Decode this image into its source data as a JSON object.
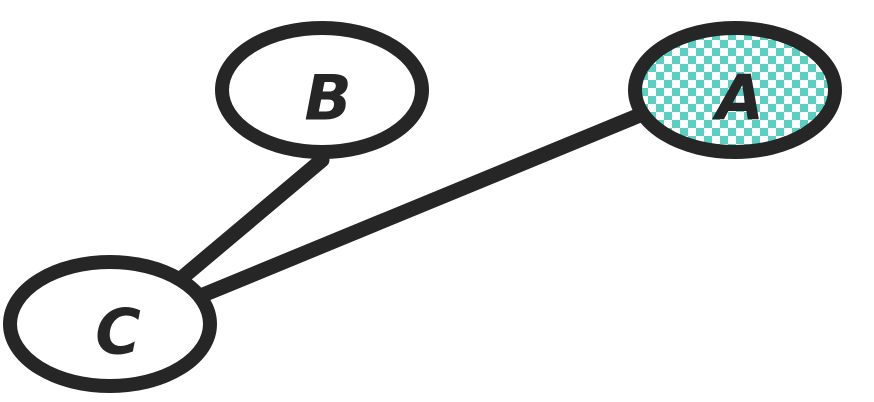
{
  "colors": {
    "stroke": "#262626",
    "fill": "#ffffff",
    "pattern_primary": "#5ccfc3",
    "pattern_secondary": "#ffffff"
  },
  "nodes": [
    {
      "id": "A",
      "label": "A",
      "fill": "checkerboard-pattern"
    },
    {
      "id": "B",
      "label": "B",
      "fill": "white"
    },
    {
      "id": "C",
      "label": "C",
      "fill": "white"
    }
  ],
  "edges": [
    {
      "from": "B",
      "to": "C"
    },
    {
      "from": "A",
      "to": "C"
    }
  ]
}
